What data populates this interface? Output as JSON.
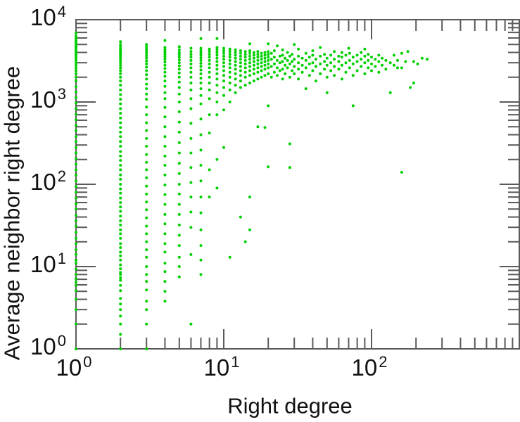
{
  "figure": {
    "background": "#ffffff",
    "axis_color": "#5a5a5a",
    "text_color": "#111111"
  },
  "chart_data": {
    "type": "scatter",
    "title": "",
    "xlabel": "Right degree",
    "ylabel": "Average neighbor right degree",
    "xscale": "log",
    "yscale": "log",
    "xlim": [
      1,
      1000
    ],
    "ylim": [
      1,
      10000
    ],
    "grid": false,
    "legend": false,
    "marker": {
      "shape": "dot",
      "color": "#00d000",
      "size": 4
    },
    "x_ticks": [
      {
        "base": "10",
        "exp": "0",
        "value": 1
      },
      {
        "base": "10",
        "exp": "1",
        "value": 10
      },
      {
        "base": "10",
        "exp": "2",
        "value": 100
      }
    ],
    "y_ticks": [
      {
        "base": "10",
        "exp": "0",
        "value": 1
      },
      {
        "base": "10",
        "exp": "1",
        "value": 10
      },
      {
        "base": "10",
        "exp": "2",
        "value": 100
      },
      {
        "base": "10",
        "exp": "3",
        "value": 1000
      },
      {
        "base": "10",
        "exp": "4",
        "value": 10000
      }
    ],
    "columns": [
      {
        "x": 1,
        "ys": [
          1,
          2,
          3,
          4,
          5.1,
          5.9,
          6.5,
          7.1,
          8,
          9.3,
          11,
          12,
          14,
          16,
          19,
          22,
          26,
          31,
          36,
          42,
          50,
          58,
          68,
          80,
          94,
          110,
          130,
          150,
          175,
          205,
          240,
          280,
          330,
          380,
          450,
          520,
          610,
          710,
          830,
          970,
          1130,
          1320,
          1540,
          1800,
          2000,
          2200,
          2400,
          2600,
          2800,
          3000,
          3200,
          3400,
          3600,
          3800,
          4000,
          4200,
          4400,
          4600,
          4800,
          5000,
          5300,
          5600,
          5900,
          6300,
          6900
        ]
      },
      {
        "x": 2,
        "ys": [
          1,
          1.5,
          2,
          2.5,
          3,
          3.5,
          4.1,
          5.1,
          5.9,
          6.8,
          7.3,
          8,
          8.5,
          9.4,
          10.5,
          12,
          13.5,
          15,
          17,
          19,
          22,
          25,
          28,
          32,
          36,
          41,
          47,
          53,
          60,
          68,
          78,
          88,
          100,
          115,
          130,
          150,
          170,
          195,
          220,
          250,
          290,
          330,
          380,
          430,
          490,
          560,
          640,
          730,
          830,
          950,
          1080,
          1230,
          1400,
          1600,
          1800,
          2000,
          2200,
          2400,
          2600,
          2800,
          3000,
          3200,
          3400,
          3600,
          3800,
          4000,
          4200,
          4400,
          4700,
          5000,
          5400
        ]
      },
      {
        "x": 3,
        "ys": [
          1,
          2,
          3,
          3.8,
          5.2,
          6.6,
          8,
          10,
          13,
          16,
          20,
          25,
          31,
          39,
          49,
          61,
          76,
          95,
          120,
          150,
          185,
          230,
          290,
          360,
          450,
          560,
          700,
          870,
          1080,
          1250,
          1450,
          1650,
          1900,
          2150,
          2400,
          2650,
          2900,
          3150,
          3400,
          3650,
          3900,
          4150,
          4400,
          4700,
          5000
        ]
      },
      {
        "x": 4,
        "ys": [
          3.8,
          5,
          6.6,
          8.7,
          11,
          15,
          19,
          25,
          33,
          43,
          57,
          75,
          98,
          130,
          170,
          220,
          290,
          380,
          500,
          660,
          860,
          1100,
          1300,
          1550,
          1800,
          2050,
          2300,
          2550,
          2800,
          3050,
          3300,
          3550,
          3800,
          4050,
          4300,
          4600,
          5600
        ]
      },
      {
        "x": 5,
        "ys": [
          7.5,
          10,
          13,
          18,
          24,
          32,
          43,
          57,
          76,
          100,
          135,
          180,
          240,
          320,
          430,
          570,
          760,
          1000,
          1250,
          1500,
          1750,
          2000,
          2250,
          2500,
          2750,
          3000,
          3250,
          3500,
          3750,
          4000,
          4300,
          4700
        ]
      },
      {
        "x": 6,
        "ys": [
          2,
          14,
          30,
          46,
          70,
          105,
          160,
          240,
          360,
          550,
          830,
          1100,
          1400,
          1700,
          2000,
          2300,
          2600,
          2900,
          3200,
          3500,
          3800,
          4100,
          4500
        ]
      },
      {
        "x": 7,
        "ys": [
          8,
          12,
          18,
          28,
          45,
          70,
          110,
          170,
          260,
          400,
          620,
          950,
          1200,
          1450,
          1700,
          1950,
          2200,
          2450,
          2700,
          2950,
          3200,
          3450,
          3700,
          3950,
          4200,
          4500,
          5900
        ]
      },
      {
        "x": 8,
        "ys": [
          70,
          150,
          420,
          700,
          1100,
          1400,
          1700,
          2000,
          2300,
          2600,
          2900,
          3200,
          3500,
          3800,
          4100,
          4400
        ]
      },
      {
        "x": 9,
        "ys": [
          90,
          200,
          700,
          1000,
          1300,
          1600,
          1900,
          2200,
          2500,
          2800,
          3100,
          3400,
          3700,
          4000,
          4300,
          4600,
          5900
        ]
      },
      {
        "x": 10,
        "ys": [
          280,
          800,
          1200,
          1500,
          1800,
          2100,
          2400,
          2700,
          3000,
          3300,
          3600,
          3900,
          4200,
          4500
        ]
      },
      {
        "x": 11,
        "ys": [
          13,
          1000,
          1400,
          1700,
          2000,
          2300,
          2600,
          2900,
          3200,
          3500,
          3800,
          4100,
          4400
        ]
      },
      {
        "x": 12,
        "ys": [
          1300,
          1600,
          1900,
          2200,
          2500,
          2800,
          3100,
          3400,
          3700,
          4000,
          4300
        ]
      },
      {
        "x": 13,
        "ys": [
          40,
          1500,
          1800,
          2100,
          2400,
          2700,
          3000,
          3300,
          3600,
          3900,
          4200
        ]
      },
      {
        "x": 14,
        "ys": [
          20,
          1600,
          2000,
          2300,
          2600,
          2900,
          3200,
          3500,
          3800,
          4100
        ]
      },
      {
        "x": 15,
        "ys": [
          28,
          70,
          1700,
          2100,
          2400,
          2700,
          3000,
          3300,
          3600,
          3900,
          4200,
          5100
        ]
      },
      {
        "x": 16,
        "ys": [
          1800,
          2200,
          2500,
          2800,
          3100,
          3400,
          3700,
          4000
        ]
      },
      {
        "x": 17,
        "ys": [
          500,
          1900,
          2300,
          2600,
          2900,
          3200,
          3500,
          3800,
          4100
        ]
      },
      {
        "x": 18,
        "ys": [
          2000,
          2400,
          2700,
          3000,
          3300,
          3600,
          3900
        ]
      },
      {
        "x": 19,
        "ys": [
          490,
          2100,
          2500,
          2800,
          3100,
          3400,
          3700,
          4000
        ]
      },
      {
        "x": 20,
        "ys": [
          163,
          900,
          2200,
          2600,
          2900,
          3200,
          3500,
          3800,
          4100,
          5100
        ]
      }
    ],
    "extra_points": [
      [
        21,
        2000
      ],
      [
        21,
        2700
      ],
      [
        21,
        3300
      ],
      [
        21,
        3900
      ],
      [
        22,
        2300
      ],
      [
        22,
        2900
      ],
      [
        22,
        3500
      ],
      [
        22,
        4200
      ],
      [
        23,
        2100
      ],
      [
        23,
        2600
      ],
      [
        23,
        3200
      ],
      [
        23,
        4800
      ],
      [
        24,
        2400
      ],
      [
        24,
        3000
      ],
      [
        24,
        3600
      ],
      [
        25,
        1900
      ],
      [
        25,
        2500
      ],
      [
        25,
        3100
      ],
      [
        25,
        3700
      ],
      [
        25,
        4300
      ],
      [
        26,
        2200
      ],
      [
        26,
        2800
      ],
      [
        26,
        3400
      ],
      [
        27,
        2600
      ],
      [
        27,
        3200
      ],
      [
        27,
        4000
      ],
      [
        28,
        160
      ],
      [
        28,
        310
      ],
      [
        28,
        2000
      ],
      [
        28,
        2900
      ],
      [
        28,
        3600
      ],
      [
        29,
        2400
      ],
      [
        29,
        3100
      ],
      [
        29,
        3800
      ],
      [
        30,
        2200
      ],
      [
        30,
        2700
      ],
      [
        30,
        3300
      ],
      [
        30,
        5000
      ],
      [
        32,
        1900
      ],
      [
        32,
        2500
      ],
      [
        32,
        3000
      ],
      [
        32,
        3600
      ],
      [
        32,
        4400
      ],
      [
        34,
        2300
      ],
      [
        34,
        2800
      ],
      [
        34,
        3400
      ],
      [
        36,
        1450
      ],
      [
        36,
        2600
      ],
      [
        36,
        3200
      ],
      [
        36,
        3900
      ],
      [
        38,
        2100
      ],
      [
        38,
        2900
      ],
      [
        38,
        3500
      ],
      [
        40,
        2400
      ],
      [
        40,
        3000
      ],
      [
        40,
        3700
      ],
      [
        40,
        4200
      ],
      [
        42,
        1800
      ],
      [
        42,
        2700
      ],
      [
        42,
        3300
      ],
      [
        45,
        2200
      ],
      [
        45,
        2900
      ],
      [
        45,
        3600
      ],
      [
        45,
        4600
      ],
      [
        48,
        2500
      ],
      [
        48,
        3100
      ],
      [
        48,
        3800
      ],
      [
        50,
        1300
      ],
      [
        50,
        2000
      ],
      [
        50,
        2800
      ],
      [
        50,
        3400
      ],
      [
        53,
        2400
      ],
      [
        53,
        3000
      ],
      [
        53,
        3700
      ],
      [
        56,
        2100
      ],
      [
        56,
        2700
      ],
      [
        56,
        3300
      ],
      [
        56,
        4100
      ],
      [
        60,
        2500
      ],
      [
        60,
        3100
      ],
      [
        60,
        3600
      ],
      [
        63,
        1900
      ],
      [
        63,
        2800
      ],
      [
        63,
        3500
      ],
      [
        63,
        4000
      ],
      [
        67,
        2300
      ],
      [
        67,
        3000
      ],
      [
        67,
        3700
      ],
      [
        70,
        4500
      ],
      [
        71,
        2600
      ],
      [
        71,
        3200
      ],
      [
        71,
        3900
      ],
      [
        75,
        900
      ],
      [
        75,
        2100
      ],
      [
        75,
        2900
      ],
      [
        75,
        3500
      ],
      [
        80,
        2400
      ],
      [
        80,
        3100
      ],
      [
        80,
        3700
      ],
      [
        85,
        2700
      ],
      [
        85,
        3300
      ],
      [
        85,
        4000
      ],
      [
        90,
        2200
      ],
      [
        90,
        3000
      ],
      [
        90,
        3600
      ],
      [
        90,
        4400
      ],
      [
        95,
        2600
      ],
      [
        95,
        3200
      ],
      [
        95,
        3800
      ],
      [
        100,
        2400
      ],
      [
        100,
        2900
      ],
      [
        100,
        3500
      ],
      [
        106,
        2700
      ],
      [
        106,
        3300
      ],
      [
        112,
        2300
      ],
      [
        112,
        3100
      ],
      [
        112,
        3700
      ],
      [
        118,
        2800
      ],
      [
        118,
        3400
      ],
      [
        125,
        2500
      ],
      [
        125,
        3200
      ],
      [
        134,
        1300
      ],
      [
        134,
        3000
      ],
      [
        142,
        2800
      ],
      [
        142,
        3700
      ],
      [
        150,
        2600
      ],
      [
        150,
        3200
      ],
      [
        160,
        140
      ],
      [
        160,
        2600
      ],
      [
        160,
        3900
      ],
      [
        170,
        3100
      ],
      [
        176,
        4100
      ],
      [
        183,
        1500
      ],
      [
        193,
        1700
      ],
      [
        193,
        3100
      ],
      [
        205,
        2900
      ],
      [
        220,
        3400
      ],
      [
        238,
        3300
      ]
    ]
  }
}
